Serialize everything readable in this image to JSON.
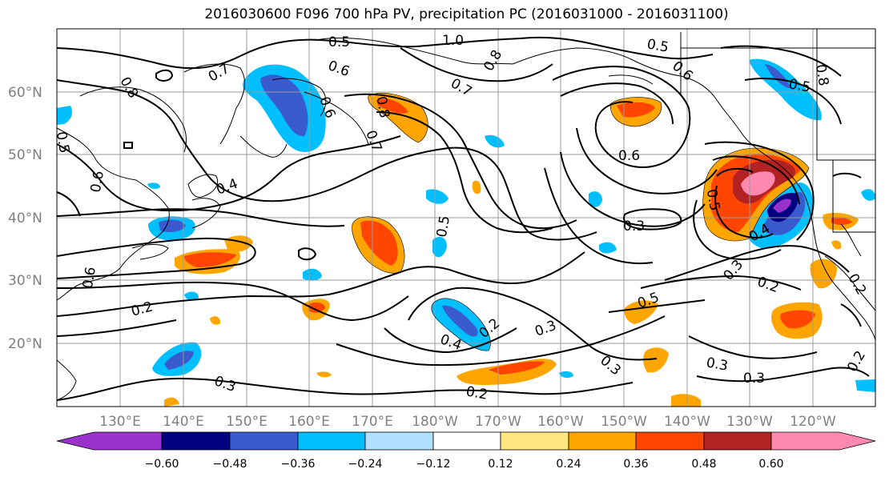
{
  "title": "2016030600 F096 700 hPa PV, precipitation PC (2016031000 - 2016031100)",
  "lat_labels": [
    "60°N",
    "50°N",
    "40°N",
    "30°N",
    "20°N"
  ],
  "lon_labels": [
    "130°E",
    "140°E",
    "150°E",
    "160°E",
    "170°E",
    "180°W",
    "170°W",
    "160°W",
    "150°W",
    "140°W",
    "130°W",
    "120°W"
  ],
  "colorbar": {
    "ticks": [
      "−0.60",
      "−0.48",
      "−0.36",
      "−0.24",
      "−0.12",
      "0.12",
      "0.24",
      "0.36",
      "0.48",
      "0.60"
    ],
    "colors": [
      "#9932cc",
      "#000080",
      "#3a5bd0",
      "#00bfff",
      "#b0e0ff",
      "#ffffff",
      "#ffe680",
      "#ffa500",
      "#ff4500",
      "#b22222",
      "#ff88b0"
    ]
  },
  "contour_labels": [
    "0.5",
    "1.0",
    "0.8",
    "0.7",
    "0.6",
    "0.7",
    "0.8",
    "0.6",
    "0.8",
    "0.5",
    "0.6",
    "0.4",
    "0.7",
    "0.5",
    "0.6",
    "0.3",
    "0.5",
    "0.6",
    "0.2",
    "0.4",
    "0.2",
    "0.3",
    "0.3",
    "0.2",
    "0.3",
    "0.3",
    "0.5",
    "0.3",
    "0.4",
    "0.2",
    "0.3",
    "0.2",
    "0.5",
    "0.8",
    "0.5",
    "0.6",
    "0.2"
  ]
}
